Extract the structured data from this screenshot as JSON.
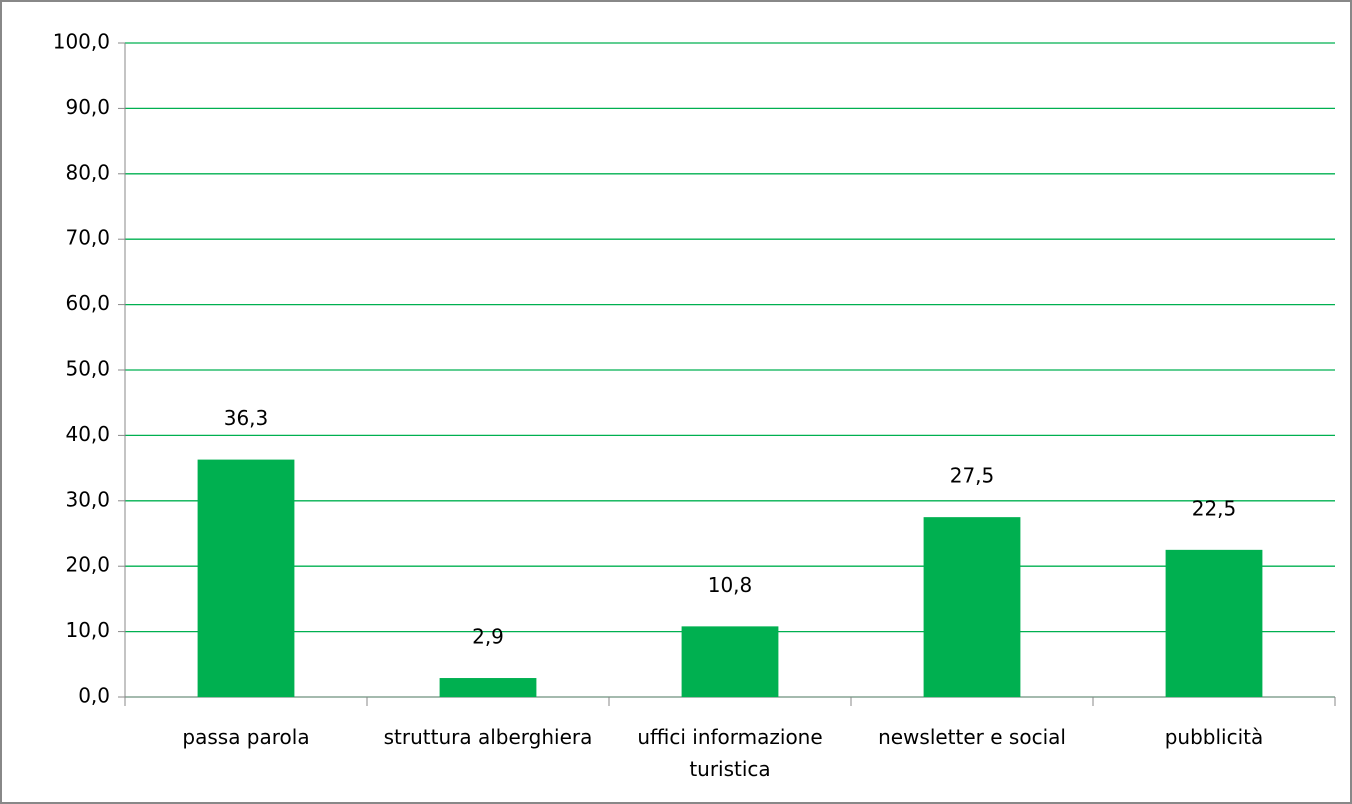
{
  "chart_data": {
    "type": "bar",
    "categories": [
      "passa parola",
      "struttura alberghiera",
      "uffici informazione turistica",
      "newsletter e social",
      "pubblicità"
    ],
    "values": [
      36.3,
      2.9,
      10.8,
      27.5,
      22.5
    ],
    "value_labels": [
      "36,3",
      "2,9",
      "10,8",
      "27,5",
      "22,5"
    ],
    "color": "#00b050",
    "ylim": [
      0,
      100
    ],
    "yticks": [
      {
        "value": 0,
        "label": "0,0"
      },
      {
        "value": 10,
        "label": "10,0"
      },
      {
        "value": 20,
        "label": "20,0"
      },
      {
        "value": 30,
        "label": "30,0"
      },
      {
        "value": 40,
        "label": "40,0"
      },
      {
        "value": 50,
        "label": "50,0"
      },
      {
        "value": 60,
        "label": "60,0"
      },
      {
        "value": 70,
        "label": "70,0"
      },
      {
        "value": 80,
        "label": "80,0"
      },
      {
        "value": 90,
        "label": "90,0"
      },
      {
        "value": 100,
        "label": "100,0"
      }
    ],
    "grid": true
  }
}
